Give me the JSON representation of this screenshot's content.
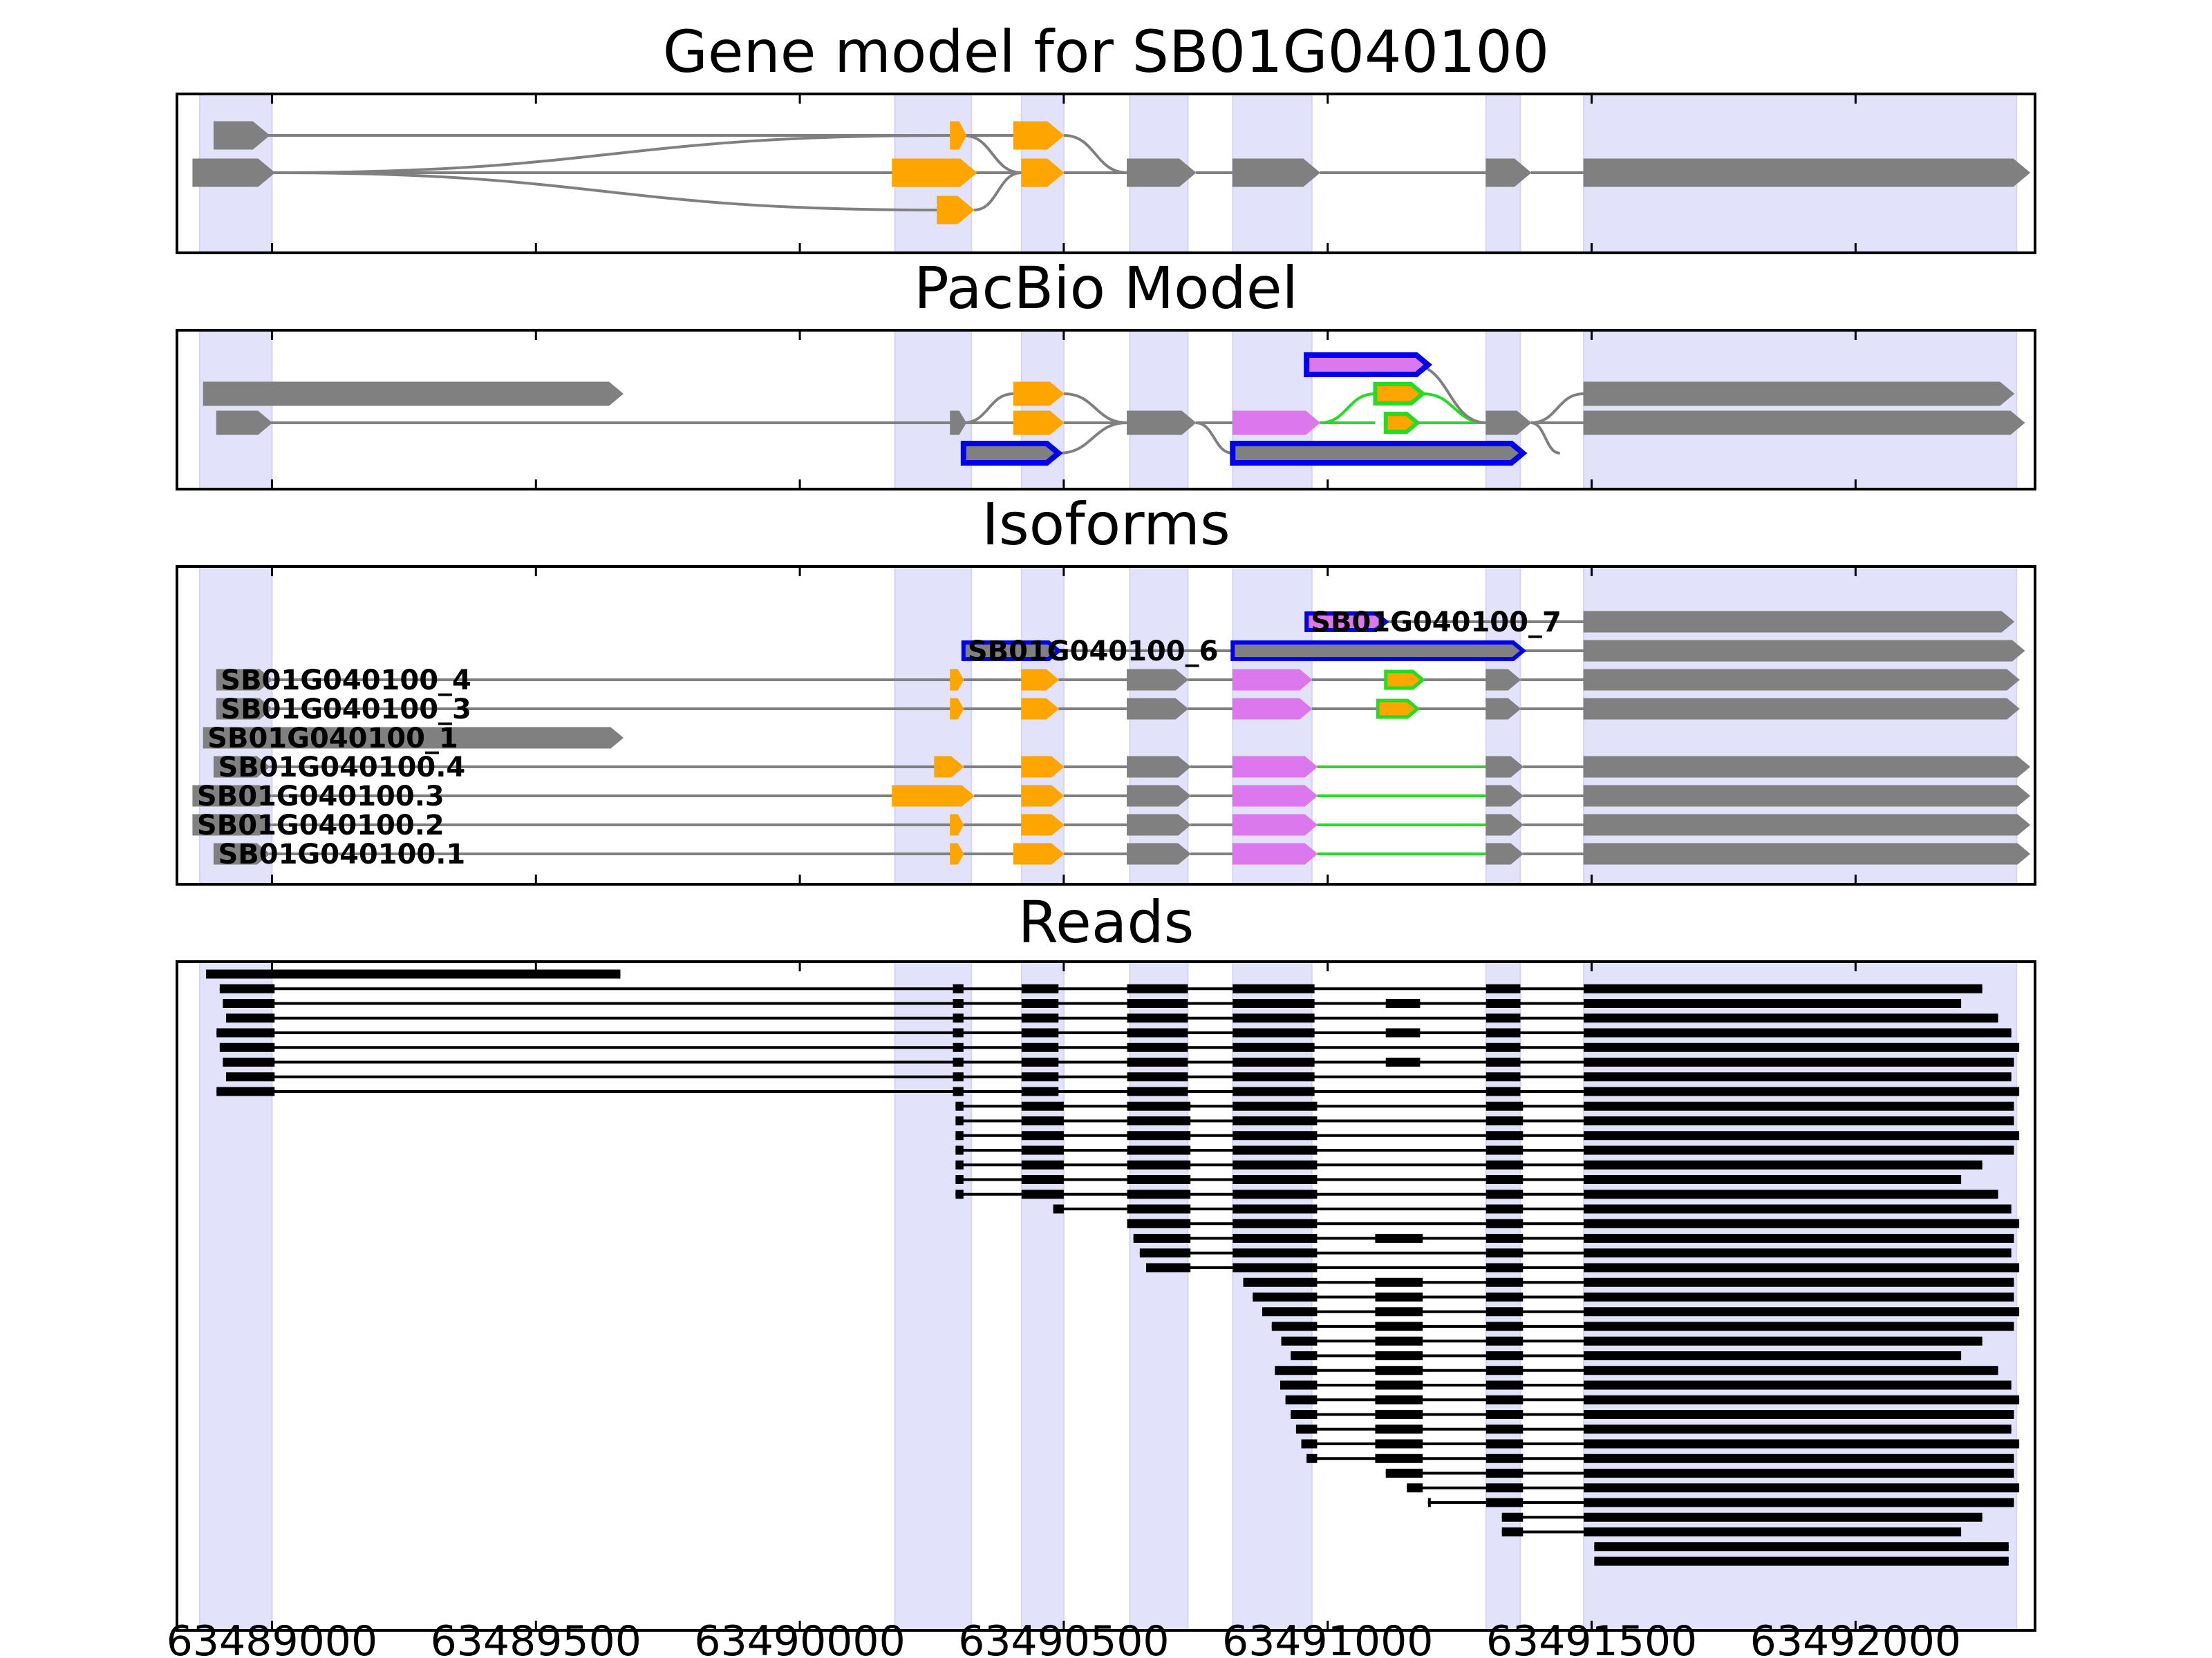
{
  "panels": [
    {
      "id": "gene_model",
      "title": "Gene model for SB01G040100"
    },
    {
      "id": "pacbio",
      "title": "PacBio Model"
    },
    {
      "id": "isoforms",
      "title": "Isoforms"
    },
    {
      "id": "reads",
      "title": "Reads"
    }
  ],
  "colors": {
    "shade": "#e2e2fb",
    "gray": "#808080",
    "orange": "#ffa500",
    "violet": "#dd77ee",
    "blue": "#0000ee",
    "green": "#22dd22",
    "read": "#000000"
  },
  "x_axis": {
    "min": 63488820,
    "max": 63492340,
    "ticks": [
      63489000,
      63489500,
      63490000,
      63490500,
      63491000,
      63491500,
      63492000
    ],
    "tick_labels": [
      "63489000",
      "63489500",
      "63490000",
      "63490500",
      "63491000",
      "63491500",
      "63492000"
    ]
  },
  "shaded_exon_regions": [
    [
      63488863,
      63489000
    ],
    [
      63490180,
      63490325
    ],
    [
      63490420,
      63490500
    ],
    [
      63490625,
      63490735
    ],
    [
      63490820,
      63490970
    ],
    [
      63491300,
      63491365
    ],
    [
      63491485,
      63492305
    ]
  ],
  "gene_model": [
    {
      "row": 0,
      "exons": [
        [
          63488890,
          63488990
        ],
        [
          63490285,
          63490310
        ],
        [
          63490405,
          63490500
        ]
      ],
      "color": "gray"
    },
    {
      "row": 1,
      "exons": [
        [
          63488850,
          63489000
        ],
        [
          63490175,
          63490330
        ],
        [
          63490420,
          63490500
        ],
        [
          63490620,
          63490750
        ],
        [
          63490820,
          63490985
        ],
        [
          63491300,
          63491385
        ],
        [
          63491485,
          63492320
        ]
      ],
      "color": "gray"
    },
    {
      "row": 2,
      "exons": [
        [
          63490260,
          63490330
        ]
      ],
      "color": "gray"
    }
  ],
  "isoforms": [
    {
      "name": "SB01G040100_7"
    },
    {
      "name": "SB01G040100_6"
    },
    {
      "name": "SB01G040100_4"
    },
    {
      "name": "SB01G040100_3"
    },
    {
      "name": "SB01G040100_1"
    },
    {
      "name": "SB01G040100.4"
    },
    {
      "name": "SB01G040100.3"
    },
    {
      "name": "SB01G040100.2"
    },
    {
      "name": "SB01G040100.1"
    }
  ],
  "reads_count": 41
}
